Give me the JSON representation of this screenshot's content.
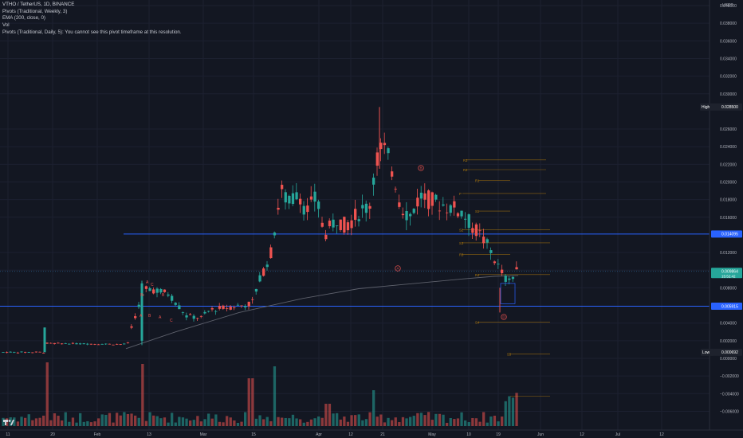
{
  "header": {
    "symbol_line": "VTHO / TetherUS, 1D, BINANCE",
    "indicators": [
      "Pivots (Traditional, Weekly, 3)",
      "EMA (200, close, 0)",
      "Vol",
      "Pivots (Traditional, Daily, 5): You cannot see this pivot timeframe at this resolution."
    ]
  },
  "price_axis": {
    "currency": "USDT",
    "ticks": [
      "0.040000",
      "0.038000",
      "0.036000",
      "0.034000",
      "0.032000",
      "0.030000",
      "0.026000",
      "0.024000",
      "0.022000",
      "0.020000",
      "0.018000",
      "0.016000",
      "0.012000",
      "0.010000",
      "0.008000",
      "0.004000",
      "0.002000",
      "0.000000",
      "−0.002000",
      "−0.004000",
      "−0.006000"
    ],
    "tick_values": [
      0.04,
      0.038,
      0.036,
      0.034,
      0.032,
      0.03,
      0.026,
      0.024,
      0.022,
      0.02,
      0.018,
      0.016,
      0.012,
      0.01,
      0.008,
      0.004,
      0.002,
      0.0,
      -0.002,
      -0.004,
      -0.006
    ],
    "high_label": "High",
    "high_value": "0.028500",
    "high_price": 0.0285,
    "low_label": "Low",
    "low_value": "0.000692",
    "low_price": 0.000692,
    "line_a_value": "0.014095",
    "line_a_price": 0.014095,
    "line_b_value": "0.005915",
    "line_b_price": 0.005915,
    "last_value": "0.009864",
    "last_price": 0.009864,
    "countdown": "15:52:42"
  },
  "time_axis": {
    "labels": [
      "11",
      "20",
      "Feb",
      "13",
      "Mar",
      "15",
      "Apr",
      "12",
      "21",
      "May",
      "10",
      "19",
      "Jun",
      "12",
      "Jul",
      "12"
    ]
  },
  "annotations": {
    "pattern_labels": [
      "A",
      "C",
      "B",
      "B",
      "A",
      "C",
      "B",
      "A"
    ],
    "circle_labels": [
      "B",
      "A",
      "D"
    ],
    "pivot_labels": [
      "R3",
      "R2",
      "R1",
      "P",
      "S1",
      "S2",
      "S3",
      "R5",
      "R4",
      "S4",
      "S5"
    ]
  },
  "colors": {
    "background": "#131722",
    "up": "#26a69a",
    "down": "#ef5350",
    "level_line": "#2962ff",
    "ema": "#5d606b",
    "pivot": "#f7a600",
    "text": "#b2b5be",
    "high_badge": "#1e222d"
  },
  "icons": [
    "tradingview-logo-icon"
  ]
}
